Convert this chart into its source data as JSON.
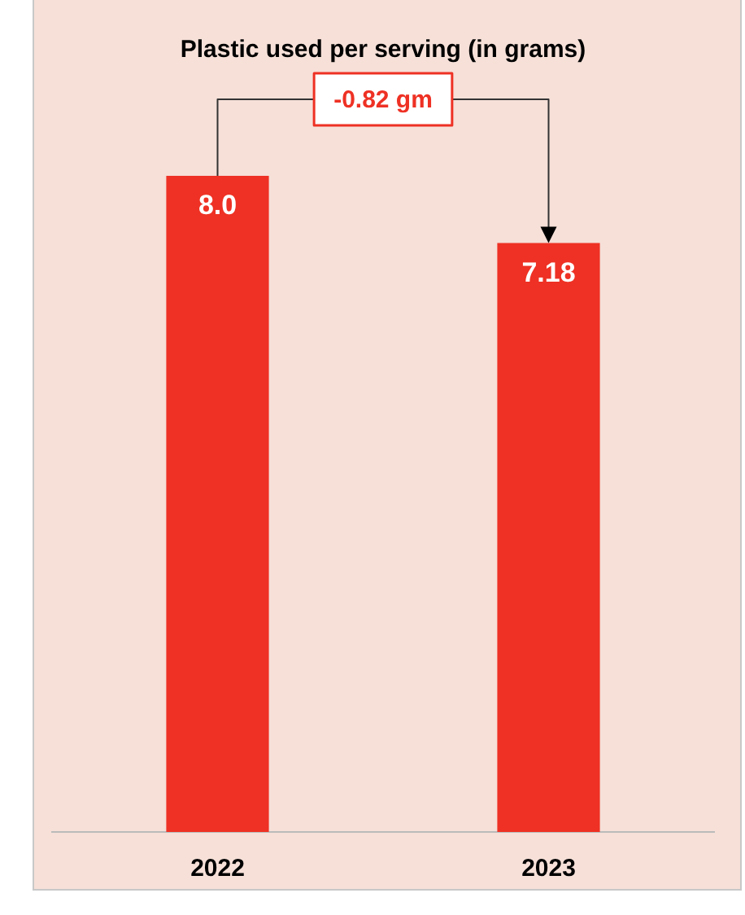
{
  "chart_data": {
    "type": "bar",
    "title": "Plastic used per serving (in grams)",
    "categories": [
      "2022",
      "2023"
    ],
    "values": [
      8.0,
      7.18
    ],
    "value_labels": [
      "8.0",
      "7.18"
    ],
    "color": "#ee3124",
    "annotations": [
      "-0.82 gm"
    ],
    "grid": false,
    "legend": false
  }
}
